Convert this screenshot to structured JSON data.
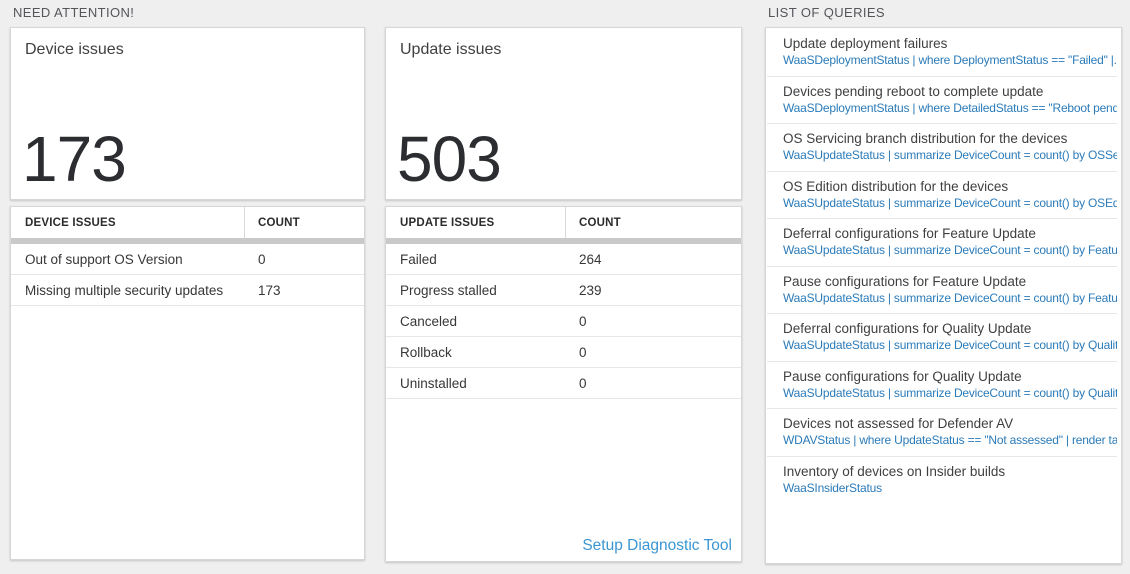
{
  "colors": {
    "page_bg": "#efefef",
    "card_border": "#d6d6d6",
    "section_label": "#55565a",
    "title_color": "#404040",
    "number_color": "#2b2d30",
    "header_text": "#2b2b2b",
    "row_text": "#373737",
    "row_sep": "#e6e6e6",
    "scrollbar": "#c9c9c9",
    "link_blue": "#2b7bb9",
    "setup_link_blue": "#3b96d2"
  },
  "sections": {
    "need_attention_label": "NEED ATTENTION!",
    "list_of_queries_label": "LIST OF QUERIES"
  },
  "device_card": {
    "title": "Device issues",
    "count": "173",
    "table": {
      "headers": [
        "DEVICE ISSUES",
        "COUNT"
      ],
      "rows": [
        {
          "label": "Out of support OS Version",
          "count": "0"
        },
        {
          "label": "Missing multiple security updates",
          "count": "173"
        }
      ]
    }
  },
  "update_card": {
    "title": "Update issues",
    "count": "503",
    "table": {
      "headers": [
        "UPDATE ISSUES",
        "COUNT"
      ],
      "rows": [
        {
          "label": "Failed",
          "count": "264"
        },
        {
          "label": "Progress stalled",
          "count": "239"
        },
        {
          "label": "Canceled",
          "count": "0"
        },
        {
          "label": "Rollback",
          "count": "0"
        },
        {
          "label": "Uninstalled",
          "count": "0"
        }
      ]
    },
    "footer_link": "Setup Diagnostic Tool"
  },
  "queries": {
    "items": [
      {
        "title": "Update deployment failures",
        "query": "WaaSDeploymentStatus | where DeploymentStatus == \"Failed\" |..."
      },
      {
        "title": "Devices pending reboot to complete update",
        "query": "WaaSDeploymentStatus | where DetailedStatus == \"Reboot pend..."
      },
      {
        "title": "OS Servicing branch distribution for the devices",
        "query": "WaaSUpdateStatus | summarize DeviceCount = count() by OSSer..."
      },
      {
        "title": "OS Edition distribution for the devices",
        "query": "WaaSUpdateStatus | summarize DeviceCount = count() by OSEdit..."
      },
      {
        "title": "Deferral configurations for Feature Update",
        "query": "WaaSUpdateStatus | summarize DeviceCount = count() by Featur..."
      },
      {
        "title": "Pause configurations for Feature Update",
        "query": "WaaSUpdateStatus | summarize DeviceCount = count() by Featur..."
      },
      {
        "title": "Deferral configurations for Quality Update",
        "query": "WaaSUpdateStatus | summarize DeviceCount = count() by Qualit..."
      },
      {
        "title": "Pause configurations for Quality Update",
        "query": "WaaSUpdateStatus | summarize DeviceCount = count() by Qualit..."
      },
      {
        "title": "Devices not assessed for Defender AV",
        "query": "WDAVStatus | where UpdateStatus == \"Not assessed\" | render ta..."
      },
      {
        "title": "Inventory of devices on Insider builds",
        "query": "WaaSInsiderStatus"
      }
    ]
  }
}
